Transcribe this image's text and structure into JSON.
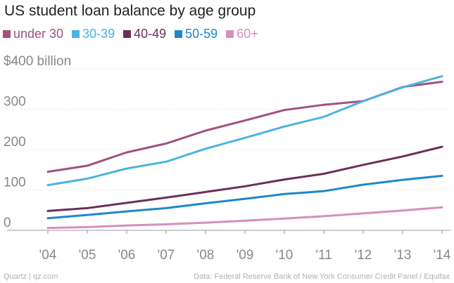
{
  "chart_data": {
    "type": "line",
    "title": "US student loan balance by age group",
    "categories": [
      "'04",
      "'05",
      "'06",
      "'07",
      "'08",
      "'09",
      "'10",
      "'11",
      "'12",
      "'13",
      "'14"
    ],
    "y_ticks": [
      {
        "value": 0,
        "label": "0"
      },
      {
        "value": 100,
        "label": "100"
      },
      {
        "value": 200,
        "label": "200"
      },
      {
        "value": 300,
        "label": "300"
      },
      {
        "value": 400,
        "label": "$400 billion"
      }
    ],
    "ylim": [
      0,
      400
    ],
    "series": [
      {
        "name": "under 30",
        "color": "#a0517f",
        "values": [
          145,
          160,
          193,
          215,
          247,
          272,
          298,
          311,
          320,
          355,
          368
        ]
      },
      {
        "name": "30-39",
        "color": "#4cb3e0",
        "values": [
          112,
          128,
          153,
          170,
          202,
          229,
          257,
          281,
          320,
          354,
          382
        ]
      },
      {
        "name": "40-49",
        "color": "#6b2f57",
        "values": [
          48,
          55,
          68,
          81,
          95,
          109,
          126,
          140,
          162,
          183,
          207
        ]
      },
      {
        "name": "50-59",
        "color": "#1e87cc",
        "values": [
          30,
          38,
          47,
          55,
          67,
          78,
          90,
          97,
          113,
          125,
          135
        ]
      },
      {
        "name": "60+",
        "color": "#d590bd",
        "values": [
          6,
          8,
          12,
          15,
          19,
          24,
          29,
          35,
          42,
          49,
          57
        ]
      }
    ],
    "legend_position": "top-left",
    "grid": true
  },
  "footer": {
    "source_left": "Quartz | qz.com",
    "source_right": "Data: Federal Reserve Bank of New York Consumer Credit Panel / Equifax"
  }
}
